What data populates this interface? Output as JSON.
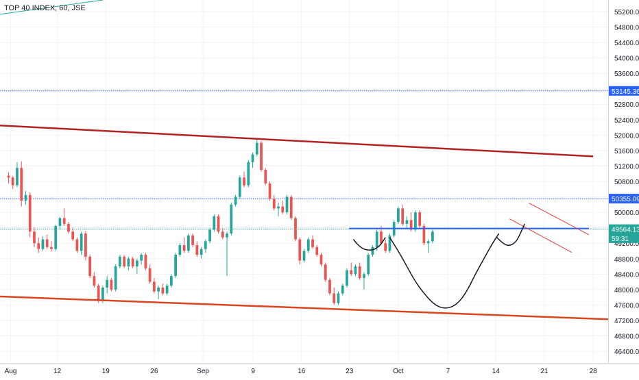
{
  "header": {
    "symbol": "TOP 40 INDEX, 60, JSE"
  },
  "chart_data": {
    "type": "candlestick",
    "price_axis": {
      "ticks": [
        "55200.00",
        "54800.00",
        "54400.00",
        "54000.00",
        "53600.00",
        "53200.00",
        "52800.00",
        "52400.00",
        "52000.00",
        "51600.00",
        "51200.00",
        "50800.00",
        "50400.00",
        "50000.00",
        "49600.00",
        "49200.00",
        "48800.00",
        "48400.00",
        "48000.00",
        "47600.00",
        "47200.00",
        "46800.00",
        "46400.00"
      ],
      "tick_values": [
        55200,
        54800,
        54400,
        54000,
        53600,
        53200,
        52800,
        52400,
        52000,
        51600,
        51200,
        50800,
        50400,
        50000,
        49600,
        49200,
        48800,
        48400,
        48000,
        47600,
        47200,
        46800,
        46400
      ],
      "ylim": [
        46100,
        55500
      ]
    },
    "time_axis": {
      "ticks": [
        "Aug",
        "12",
        "19",
        "26",
        "Sep",
        "9",
        "16",
        "23",
        "Oct",
        "7",
        "14",
        "21",
        "28"
      ],
      "tick_positions": [
        0.5,
        11.4,
        22.7,
        34,
        45.4,
        57.1,
        68.4,
        79.6,
        91,
        102.6,
        113.8,
        125.1,
        136.5
      ],
      "xlim": [
        -2,
        140
      ]
    },
    "price_labels": [
      {
        "text": "53145.36",
        "value": 53145.36,
        "color": "#2962ff"
      },
      {
        "text": "50355.09",
        "value": 50355.09,
        "color": "#2962ff"
      },
      {
        "text": "49564.13",
        "value": 49564.13,
        "color": "#26a69a"
      },
      {
        "text": "59:31",
        "value": 49330,
        "color": "#26a69a"
      }
    ],
    "horizontal_lines": [
      {
        "value": 53145.36,
        "color": "#2962ff",
        "style": "dotted"
      },
      {
        "value": 50355.09,
        "color": "#2962ff",
        "style": "dotted"
      },
      {
        "value": 49564.13,
        "color": "#26a69a",
        "style": "dotted"
      }
    ],
    "trendlines": [
      {
        "name": "upper-channel",
        "color": "#b22222",
        "from": [
          -2,
          52250
        ],
        "to": [
          136.5,
          51450
        ]
      },
      {
        "name": "lower-channel",
        "color": "#d9461e",
        "from": [
          -2,
          47820
        ],
        "to": [
          140,
          47230
        ]
      },
      {
        "name": "neckline",
        "color": "#2962ff",
        "from": [
          79.5,
          49580
        ],
        "to": [
          135.5,
          49580
        ]
      },
      {
        "name": "flag-top",
        "color": "#e53935",
        "from": [
          121.5,
          50240
        ],
        "to": [
          135.5,
          49420
        ]
      },
      {
        "name": "flag-bottom",
        "color": "#e53935",
        "from": [
          117,
          49830
        ],
        "to": [
          131.5,
          48960
        ]
      },
      {
        "name": "top-left-line",
        "color": "#26a69a",
        "from": [
          -2,
          55130
        ],
        "to": [
          22,
          55500
        ]
      }
    ],
    "curves": [
      {
        "name": "left-shoulder",
        "points": [
          [
            80.5,
            49300
          ],
          [
            82,
            49080
          ],
          [
            84.5,
            49000
          ],
          [
            86.5,
            49100
          ],
          [
            88,
            49350
          ]
        ]
      },
      {
        "name": "cup",
        "points": [
          [
            89,
            49350
          ],
          [
            91,
            49000
          ],
          [
            93,
            48600
          ],
          [
            95,
            48200
          ],
          [
            97,
            47900
          ],
          [
            99,
            47650
          ],
          [
            101,
            47520
          ],
          [
            103,
            47520
          ],
          [
            105,
            47650
          ],
          [
            107,
            47950
          ],
          [
            109,
            48400
          ],
          [
            111,
            48800
          ],
          [
            113,
            49200
          ],
          [
            114.5,
            49450
          ]
        ]
      },
      {
        "name": "right-shoulder",
        "points": [
          [
            114,
            49350
          ],
          [
            115.5,
            49180
          ],
          [
            117,
            49130
          ],
          [
            118.5,
            49230
          ],
          [
            119.5,
            49450
          ],
          [
            120.5,
            49700
          ]
        ]
      }
    ],
    "series": [
      {
        "values": [
          [
            0,
            50950,
            51040,
            50750,
            50900
          ],
          [
            1,
            50900,
            50940,
            50600,
            50700
          ],
          [
            2,
            50700,
            51300,
            50650,
            51150
          ],
          [
            3,
            51150,
            51320,
            50150,
            50300
          ],
          [
            4,
            50300,
            50550,
            50200,
            50450
          ],
          [
            5,
            50450,
            50520,
            49350,
            49500
          ],
          [
            6,
            49500,
            49620,
            49100,
            49200
          ],
          [
            7,
            49200,
            49350,
            48950,
            49050
          ],
          [
            8,
            49050,
            49380,
            49000,
            49300
          ],
          [
            9,
            49300,
            49420,
            49050,
            49100
          ],
          [
            10,
            49100,
            49250,
            48980,
            49050
          ],
          [
            11,
            49050,
            49680,
            49000,
            49650
          ],
          [
            12,
            49650,
            49880,
            49550,
            49850
          ],
          [
            13,
            49850,
            50100,
            49650,
            49700
          ],
          [
            14,
            49700,
            49750,
            49450,
            49500
          ],
          [
            15,
            49500,
            49600,
            49250,
            49300
          ],
          [
            16,
            49300,
            49350,
            48950,
            49000
          ],
          [
            17,
            49000,
            49500,
            48900,
            49450
          ],
          [
            18,
            49450,
            49520,
            48750,
            48850
          ],
          [
            19,
            48850,
            48900,
            48300,
            48350
          ],
          [
            20,
            48350,
            48450,
            48050,
            48100
          ],
          [
            21,
            48100,
            48150,
            47650,
            47700
          ],
          [
            22,
            47700,
            48100,
            47650,
            48050
          ],
          [
            23,
            48050,
            48350,
            47900,
            48250
          ],
          [
            24,
            48250,
            48300,
            47950,
            48000
          ],
          [
            25,
            48000,
            48650,
            47950,
            48600
          ],
          [
            26,
            48600,
            48900,
            48550,
            48850
          ],
          [
            27,
            48850,
            48900,
            48550,
            48600
          ],
          [
            28,
            48600,
            48850,
            48500,
            48800
          ],
          [
            29,
            48800,
            48850,
            48550,
            48600
          ],
          [
            30,
            48600,
            48800,
            48400,
            48750
          ],
          [
            31,
            48750,
            48950,
            48650,
            48900
          ],
          [
            32,
            48900,
            48950,
            48500,
            48550
          ],
          [
            33,
            48550,
            48650,
            48150,
            48200
          ],
          [
            34,
            48200,
            48300,
            47900,
            47950
          ],
          [
            35,
            47950,
            48100,
            47750,
            48050
          ],
          [
            36,
            48050,
            48150,
            47850,
            47900
          ],
          [
            37,
            47900,
            48150,
            47850,
            48100
          ],
          [
            38,
            48100,
            48400,
            48050,
            48350
          ],
          [
            39,
            48350,
            48950,
            48300,
            48900
          ],
          [
            40,
            48900,
            49200,
            48850,
            49150
          ],
          [
            41,
            49150,
            49350,
            48950,
            49000
          ],
          [
            42,
            49000,
            49450,
            48950,
            49400
          ],
          [
            43,
            49400,
            49450,
            49100,
            49150
          ],
          [
            44,
            49150,
            49250,
            48850,
            48900
          ],
          [
            45,
            48900,
            49100,
            48800,
            49050
          ],
          [
            46,
            49050,
            49300,
            48950,
            49250
          ],
          [
            47,
            49250,
            49600,
            49200,
            49550
          ],
          [
            48,
            49550,
            49950,
            49500,
            49900
          ],
          [
            49,
            49900,
            49950,
            49450,
            49500
          ],
          [
            50,
            49500,
            49600,
            49300,
            49350
          ],
          [
            51,
            49350,
            49500,
            48350,
            49450
          ],
          [
            52,
            49450,
            50250,
            49400,
            50200
          ],
          [
            53,
            50200,
            50450,
            50150,
            50400
          ],
          [
            54,
            50400,
            50950,
            50350,
            50900
          ],
          [
            55,
            50900,
            51050,
            50650,
            50700
          ],
          [
            56,
            50700,
            51350,
            50650,
            51300
          ],
          [
            57,
            51300,
            51550,
            51150,
            51500
          ],
          [
            58,
            51500,
            51880,
            51450,
            51800
          ],
          [
            59,
            51800,
            51850,
            51050,
            51100
          ],
          [
            60,
            51100,
            51150,
            50700,
            50750
          ],
          [
            61,
            50750,
            50800,
            50300,
            50350
          ],
          [
            62,
            50350,
            50450,
            50050,
            50100
          ],
          [
            63,
            50100,
            50250,
            49900,
            50150
          ],
          [
            64,
            50150,
            50300,
            49950,
            50000
          ],
          [
            65,
            50000,
            50450,
            49950,
            50400
          ],
          [
            66,
            50400,
            50450,
            49800,
            49850
          ],
          [
            67,
            49850,
            49900,
            49250,
            49300
          ],
          [
            68,
            49300,
            49350,
            48650,
            48750
          ],
          [
            69,
            48750,
            49050,
            48700,
            49000
          ],
          [
            70,
            49000,
            49350,
            48950,
            49300
          ],
          [
            71,
            49300,
            49400,
            49050,
            49100
          ],
          [
            72,
            49100,
            49150,
            48850,
            48900
          ],
          [
            73,
            48900,
            48950,
            48600,
            48650
          ],
          [
            74,
            48650,
            48700,
            48200,
            48250
          ],
          [
            75,
            48250,
            48300,
            47850,
            47900
          ],
          [
            76,
            47900,
            48050,
            47600,
            47650
          ],
          [
            77,
            47650,
            47950,
            47600,
            47900
          ],
          [
            78,
            47900,
            48150,
            47850,
            48100
          ],
          [
            79,
            48100,
            48550,
            48050,
            48500
          ],
          [
            80,
            48500,
            48700,
            48350,
            48400
          ],
          [
            81,
            48400,
            48650,
            48350,
            48600
          ],
          [
            82,
            48600,
            48700,
            48250,
            48300
          ],
          [
            83,
            48300,
            48450,
            48000,
            48400
          ],
          [
            84,
            48400,
            48950,
            48350,
            48900
          ],
          [
            85,
            48900,
            49150,
            48850,
            49100
          ],
          [
            86,
            49100,
            49550,
            49000,
            49500
          ],
          [
            87,
            49500,
            49650,
            49150,
            49200
          ],
          [
            88,
            49200,
            49300,
            48950,
            49000
          ],
          [
            89,
            49000,
            49450,
            48950,
            49400
          ],
          [
            90,
            49400,
            49800,
            49350,
            49750
          ],
          [
            91,
            49750,
            50150,
            49700,
            50100
          ],
          [
            92,
            50100,
            50200,
            49650,
            49700
          ],
          [
            93,
            49700,
            49900,
            49600,
            49800
          ],
          [
            94,
            49800,
            50000,
            49500,
            49550
          ],
          [
            95,
            49550,
            50050,
            49500,
            50000
          ],
          [
            96,
            50000,
            50050,
            49600,
            49650
          ],
          [
            97,
            49650,
            49700,
            49150,
            49200
          ],
          [
            98,
            49200,
            49300,
            48950,
            49250
          ],
          [
            99,
            49250,
            49550,
            49200,
            49500
          ]
        ]
      }
    ]
  },
  "colors": {
    "up": "#26a69a",
    "down": "#ef5350",
    "grid": "#f0f3fa",
    "axis_text": "#131722"
  }
}
